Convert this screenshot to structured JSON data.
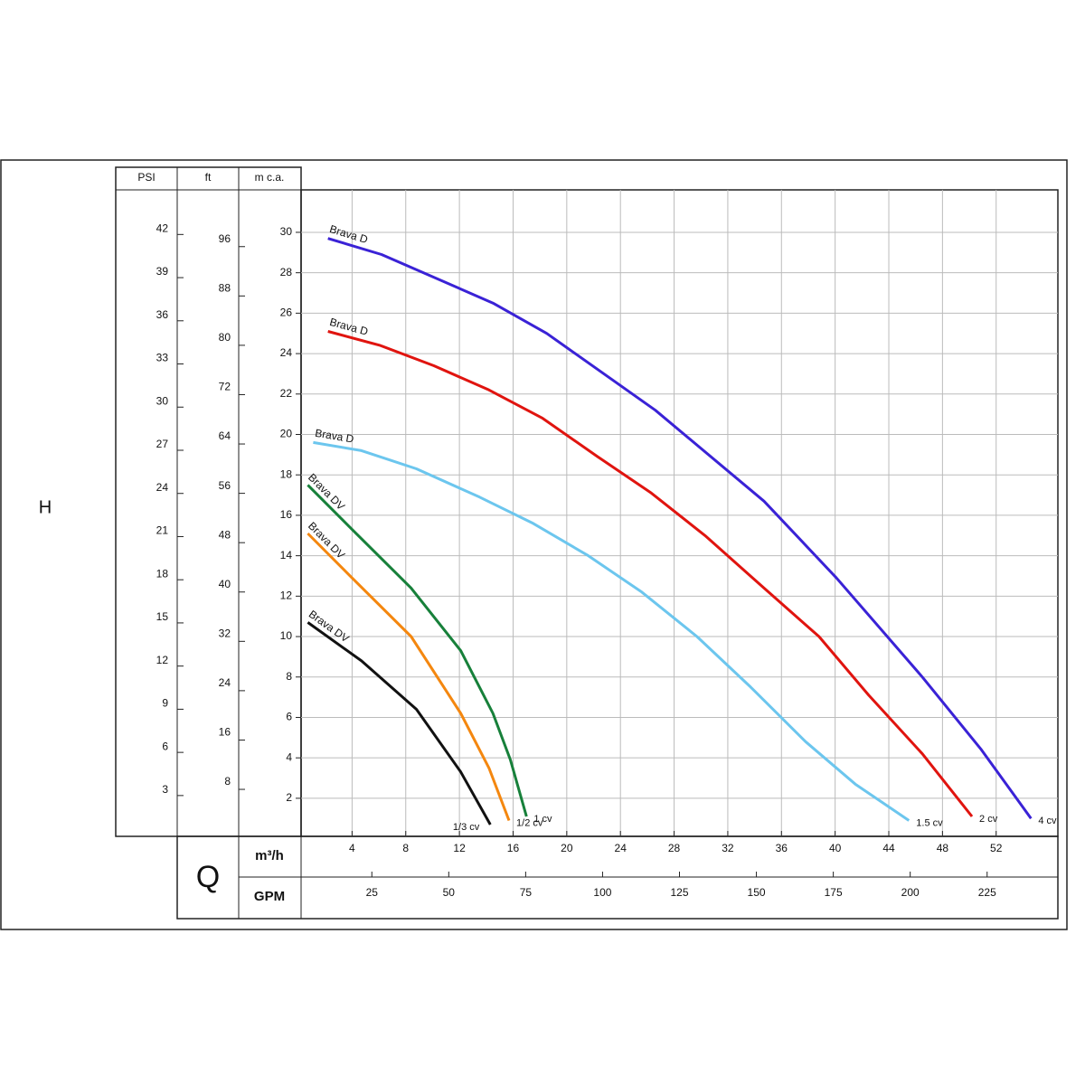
{
  "chart_data": {
    "type": "line",
    "y_title": "H",
    "x_title": "Q",
    "y_psi_label": "PSI",
    "y_ft_label": "ft",
    "y_label": "m c.a.",
    "x_label": "m³/h",
    "x_gpm_label": "GPM",
    "xlim": [
      0.2,
      56.6
    ],
    "xticks": [
      4,
      8,
      12,
      16,
      20,
      24,
      28,
      32,
      36,
      40,
      44,
      48,
      52
    ],
    "ylim": [
      0,
      32.1
    ],
    "yticks": [
      2,
      4,
      6,
      8,
      10,
      12,
      14,
      16,
      18,
      20,
      22,
      24,
      26,
      28,
      30
    ],
    "y_psi_lim": [
      0,
      45.1
    ],
    "y_psi_ticks": [
      3,
      6,
      9,
      12,
      15,
      18,
      21,
      24,
      27,
      30,
      33,
      36,
      39,
      42
    ],
    "y_ft_lim": [
      0,
      105.2
    ],
    "y_ft_ticks": [
      8,
      16,
      24,
      32,
      40,
      48,
      56,
      64,
      72,
      80,
      88,
      96
    ],
    "x_gpm_lim": [
      2,
      248
    ],
    "x_gpm_ticks": [
      25,
      50,
      75,
      100,
      125,
      150,
      175,
      200,
      225
    ],
    "grid": true,
    "series": [
      {
        "name": "4 cv",
        "label": "Brava D",
        "color": "#3a22d6",
        "x": [
          2.2,
          6.2,
          14.5,
          18.5,
          26.6,
          34.7,
          40.1,
          46.5,
          50.9,
          54.6
        ],
        "values": [
          29.7,
          28.9,
          26.5,
          25.0,
          21.2,
          16.7,
          12.9,
          8.0,
          4.4,
          1.0
        ]
      },
      {
        "name": "2 cv",
        "label": "Brava D",
        "color": "#e0140f",
        "x": [
          2.2,
          6.1,
          10.1,
          14.2,
          18.2,
          22.3,
          26.3,
          30.3,
          34.7,
          38.8,
          42.5,
          46.5,
          50.2
        ],
        "values": [
          25.1,
          24.4,
          23.4,
          22.2,
          20.8,
          18.9,
          17.1,
          15.0,
          12.4,
          10.0,
          7.1,
          4.2,
          1.1
        ]
      },
      {
        "name": "1.5 cv",
        "label": "Brava D",
        "color": "#6cc6ee",
        "x": [
          1.1,
          4.7,
          8.8,
          13.5,
          17.5,
          21.6,
          25.6,
          29.7,
          33.7,
          37.8,
          41.5,
          45.5
        ],
        "values": [
          19.6,
          19.2,
          18.3,
          16.9,
          15.6,
          14.0,
          12.2,
          10.0,
          7.5,
          4.8,
          2.7,
          0.9
        ]
      },
      {
        "name": "1 cv",
        "label": "Brava DV",
        "color": "#17803a",
        "x": [
          0.7,
          4.0,
          8.4,
          12.1,
          14.5,
          15.8,
          17.0
        ],
        "values": [
          17.5,
          15.3,
          12.4,
          9.3,
          6.2,
          3.9,
          1.1
        ]
      },
      {
        "name": "1/2 cv",
        "label": "Brava DV",
        "color": "#f4870f",
        "x": [
          0.7,
          4.0,
          8.4,
          12.1,
          14.2,
          15.7
        ],
        "values": [
          15.1,
          12.9,
          10.0,
          6.2,
          3.5,
          0.9
        ]
      },
      {
        "name": "1/3 cv",
        "label": "Brava DV",
        "color": "#111111",
        "x": [
          0.7,
          4.7,
          8.8,
          12.1,
          14.3
        ],
        "values": [
          10.7,
          8.8,
          6.4,
          3.3,
          0.7
        ]
      }
    ]
  }
}
